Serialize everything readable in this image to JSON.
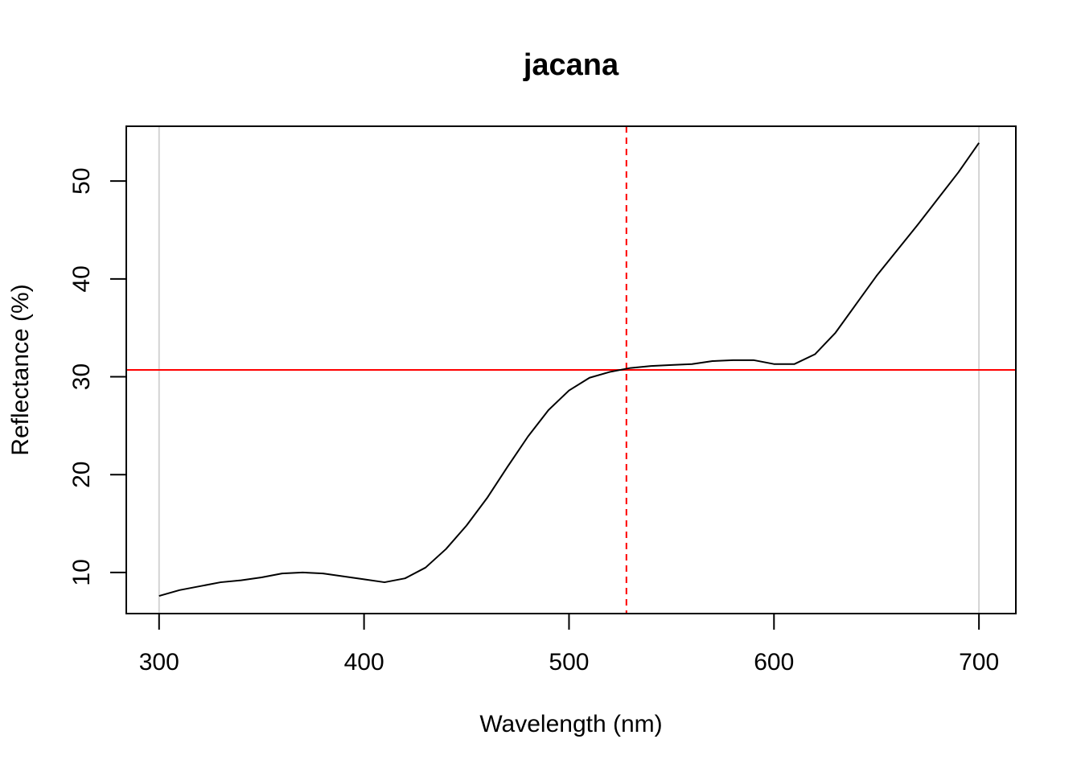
{
  "chart_data": {
    "type": "line",
    "title": "jacana",
    "xlabel": "Wavelength (nm)",
    "ylabel": "Reflectance (%)",
    "xlim": [
      284,
      718
    ],
    "ylim": [
      5.8,
      55.6
    ],
    "x_ticks": [
      300,
      400,
      500,
      600,
      700
    ],
    "y_ticks": [
      10,
      20,
      30,
      40,
      50
    ],
    "grid": false,
    "legend": "none",
    "colors": {
      "spectrum": "#000000",
      "reference_lines": "#d3d3d3",
      "highlight": "#ff0000"
    },
    "series": [
      {
        "x": [
          300,
          310,
          320,
          330,
          340,
          350,
          360,
          370,
          380,
          390,
          400,
          410,
          420,
          430,
          440,
          450,
          460,
          470,
          480,
          490,
          500,
          510,
          520,
          530,
          540,
          550,
          560,
          570,
          580,
          590,
          600,
          610,
          620,
          630,
          640,
          650,
          660,
          670,
          680,
          690,
          700
        ],
        "values": [
          7.6,
          8.2,
          8.6,
          9.0,
          9.2,
          9.5,
          9.9,
          10.0,
          9.9,
          9.6,
          9.3,
          9.0,
          9.4,
          10.5,
          12.4,
          14.8,
          17.6,
          20.8,
          23.9,
          26.6,
          28.6,
          29.9,
          30.5,
          30.9,
          31.1,
          31.2,
          31.3,
          31.6,
          31.7,
          31.7,
          31.3,
          31.3,
          32.3,
          34.5,
          37.4,
          40.3,
          42.9,
          45.5,
          48.2,
          50.9,
          53.9
        ]
      }
    ],
    "reference_lines": {
      "vertical": [
        {
          "x": 300,
          "style": "solid",
          "color": "#d3d3d3"
        },
        {
          "x": 700,
          "style": "solid",
          "color": "#d3d3d3"
        },
        {
          "x": 528,
          "style": "dashed",
          "color": "#ff0000"
        }
      ],
      "horizontal": [
        {
          "y": 30.7,
          "style": "solid",
          "color": "#ff0000"
        }
      ]
    }
  }
}
